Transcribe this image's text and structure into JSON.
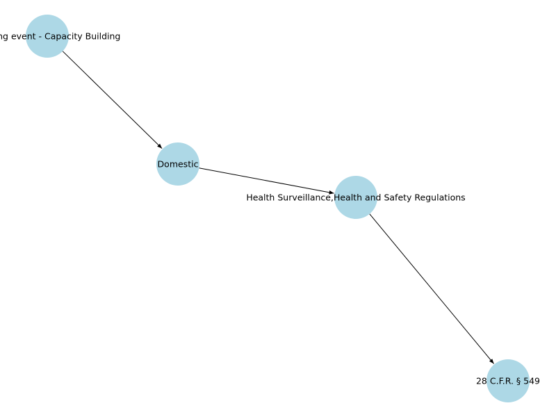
{
  "graph": {
    "node_color": "#add8e6",
    "edge_color": "#000000",
    "label_color": "#000000",
    "background": "#ffffff",
    "nodes": [
      {
        "id": "n1",
        "label": "Training event - Capacity Building"
      },
      {
        "id": "n2",
        "label": "Domestic"
      },
      {
        "id": "n3",
        "label": "Health Surveillance,Health and Safety Regulations"
      },
      {
        "id": "n4",
        "label": "28 C.F.R. § 549"
      }
    ],
    "edges": [
      {
        "from": "n1",
        "to": "n2"
      },
      {
        "from": "n2",
        "to": "n3"
      },
      {
        "from": "n3",
        "to": "n4"
      }
    ]
  }
}
